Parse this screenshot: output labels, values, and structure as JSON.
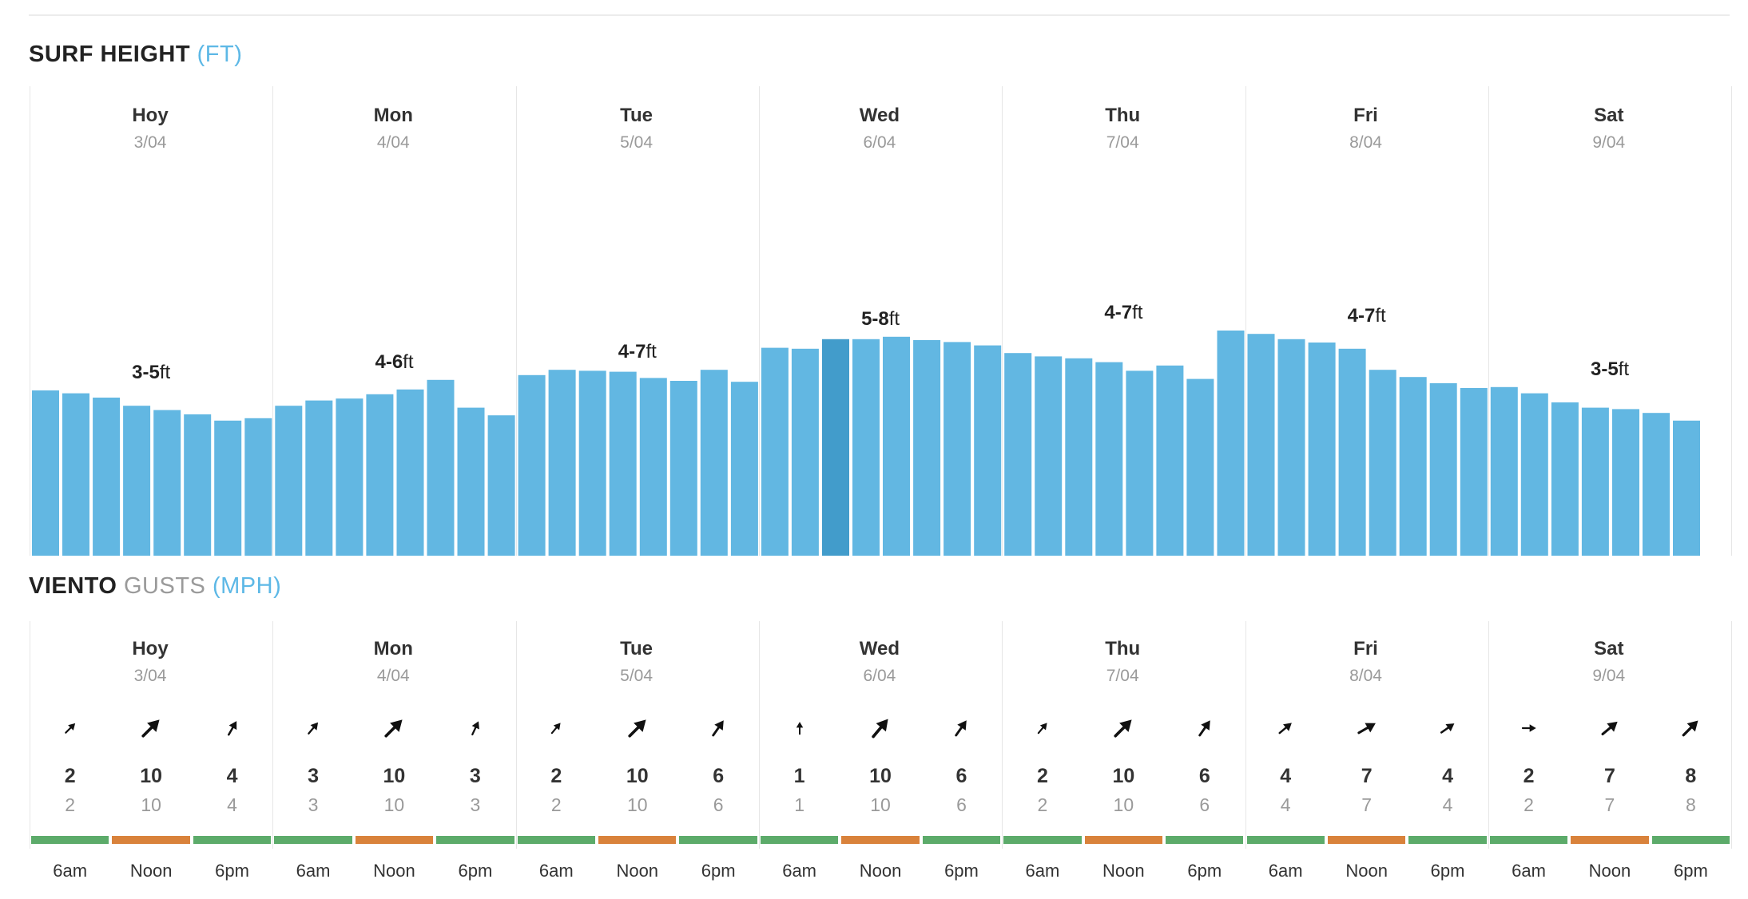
{
  "surf": {
    "title_main": "SURF HEIGHT",
    "title_unit": "(FT)",
    "days": [
      {
        "name": "Hoy",
        "date": "3/04",
        "range_num": "3-5",
        "range_unit": "ft"
      },
      {
        "name": "Mon",
        "date": "4/04",
        "range_num": "4-6",
        "range_unit": "ft"
      },
      {
        "name": "Tue",
        "date": "5/04",
        "range_num": "4-7",
        "range_unit": "ft"
      },
      {
        "name": "Wed",
        "date": "6/04",
        "range_num": "5-8",
        "range_unit": "ft"
      },
      {
        "name": "Thu",
        "date": "7/04",
        "range_num": "4-7",
        "range_unit": "ft"
      },
      {
        "name": "Fri",
        "date": "8/04",
        "range_num": "4-7",
        "range_unit": "ft"
      },
      {
        "name": "Sat",
        "date": "9/04",
        "range_num": "3-5",
        "range_unit": "ft"
      }
    ],
    "bar_fraction": [
      0.345,
      0.339,
      0.33,
      0.313,
      0.304,
      0.295,
      0.282,
      0.287,
      0.313,
      0.324,
      0.328,
      0.337,
      0.347,
      0.367,
      0.309,
      0.293,
      0.377,
      0.388,
      0.386,
      0.384,
      0.371,
      0.365,
      0.388,
      0.363,
      0.434,
      0.432,
      0.452,
      0.452,
      0.457,
      0.45,
      0.446,
      0.439,
      0.423,
      0.416,
      0.412,
      0.404,
      0.386,
      0.397,
      0.369,
      0.47,
      0.463,
      0.452,
      0.445,
      0.432,
      0.388,
      0.373,
      0.36,
      0.35,
      0.352,
      0.339,
      0.32,
      0.309,
      0.306,
      0.298,
      0.282
    ],
    "selected_index": 26,
    "bar_color": "#62b7e2",
    "selected_color": "#429ccb"
  },
  "wind": {
    "title_main": "VIENTO",
    "title_gusts": "GUSTS",
    "title_unit": "(MPH)",
    "days": [
      {
        "name": "Hoy",
        "date": "3/04"
      },
      {
        "name": "Mon",
        "date": "4/04"
      },
      {
        "name": "Tue",
        "date": "5/04"
      },
      {
        "name": "Wed",
        "date": "6/04"
      },
      {
        "name": "Thu",
        "date": "7/04"
      },
      {
        "name": "Fri",
        "date": "8/04"
      },
      {
        "name": "Sat",
        "date": "9/04"
      }
    ],
    "times": [
      "6am",
      "Noon",
      "6pm"
    ],
    "speeds": [
      2,
      10,
      4,
      3,
      10,
      3,
      2,
      10,
      6,
      1,
      10,
      6,
      2,
      10,
      6,
      4,
      7,
      4,
      2,
      7,
      8
    ],
    "gusts": [
      2,
      10,
      4,
      3,
      10,
      3,
      2,
      10,
      6,
      1,
      10,
      6,
      2,
      10,
      6,
      4,
      7,
      4,
      2,
      7,
      8
    ],
    "arrow_icon": "wind-direction-arrow-icon",
    "arrow_angles": [
      45,
      45,
      30,
      40,
      45,
      25,
      40,
      45,
      35,
      0,
      40,
      35,
      40,
      45,
      35,
      50,
      60,
      55,
      90,
      50,
      45
    ],
    "rating_colors": [
      "#5cab6a",
      "#d9823b",
      "#5cab6a"
    ]
  }
}
